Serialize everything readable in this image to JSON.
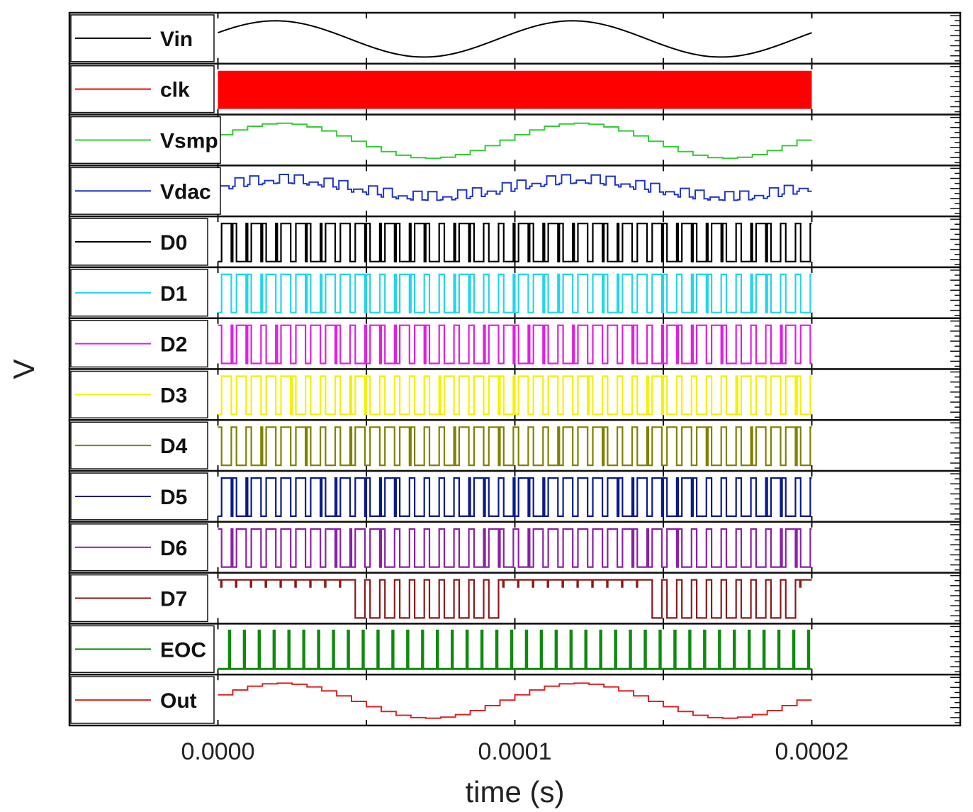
{
  "chart_data": {
    "type": "line",
    "title": "",
    "xlabel": "time  (s)",
    "ylabel": "V",
    "xlim": [
      -5e-05,
      0.00025
    ],
    "x_ticks": [
      "0.0000",
      "0.0001",
      "0.0002"
    ],
    "x_tick_values": [
      0,
      0.0001,
      0.0002
    ],
    "layout": "stacked-panels",
    "legend_placement": "left-inside-each-panel",
    "series": [
      {
        "name": "Vin",
        "color": "#000000",
        "kind": "sine",
        "period": 0.0001,
        "start_phase": 0.0,
        "samples": 0
      },
      {
        "name": "clk",
        "color": "#ff0000",
        "kind": "clock",
        "period": 5e-07
      },
      {
        "name": "Vsmp",
        "color": "#33cc33",
        "kind": "staircase",
        "period": 0.0001,
        "step": 5e-06
      },
      {
        "name": "Vdac",
        "color": "#1f35c8",
        "kind": "sar-dac",
        "period": 0.0001,
        "step": 5e-06
      },
      {
        "name": "D0",
        "color": "#000000",
        "kind": "bit",
        "bit": 0
      },
      {
        "name": "D1",
        "color": "#22d6e6",
        "kind": "bit",
        "bit": 1
      },
      {
        "name": "D2",
        "color": "#e020e0",
        "kind": "bit",
        "bit": 2
      },
      {
        "name": "D3",
        "color": "#f2f200",
        "kind": "bit",
        "bit": 3
      },
      {
        "name": "D4",
        "color": "#808000",
        "kind": "bit",
        "bit": 4
      },
      {
        "name": "D5",
        "color": "#0b1a8c",
        "kind": "bit",
        "bit": 5
      },
      {
        "name": "D6",
        "color": "#8a20a8",
        "kind": "bit",
        "bit": 6
      },
      {
        "name": "D7",
        "color": "#8b1a1a",
        "kind": "bit",
        "bit": 7
      },
      {
        "name": "EOC",
        "color": "#0f8a0f",
        "kind": "pulse",
        "period": 5e-06
      },
      {
        "name": "Out",
        "color": "#dd2222",
        "kind": "staircase",
        "period": 0.0001,
        "step": 5e-06
      }
    ],
    "x_start": 0.0,
    "x_end": 0.0002,
    "grid": false
  }
}
